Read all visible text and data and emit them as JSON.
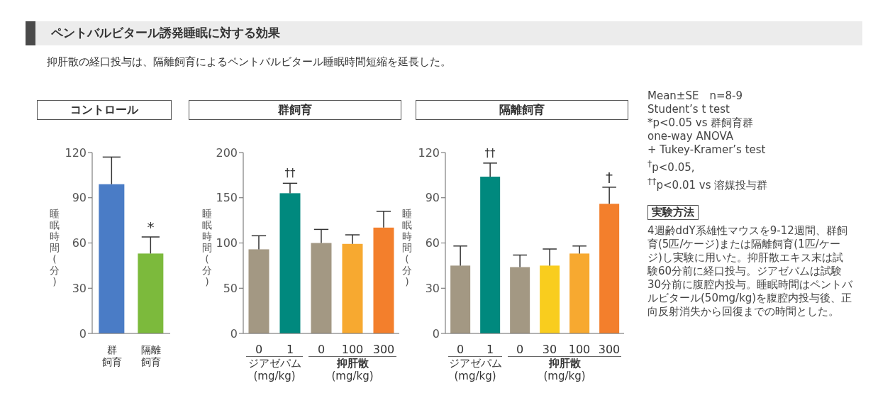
{
  "chart_data": [
    {
      "type": "other",
      "title": "ペントバルビタール誘発睡眠に対する効果",
      "subtitle": "抑肝散の経口投与は、隔離飼育によるペントバルビタール睡眠時間短縮を延長した。"
    },
    {
      "type": "bar",
      "title": "コントロール",
      "ylabel": "睡眠時間(分)",
      "categories": [
        "群飼育",
        "隔離飼育"
      ],
      "values": [
        99,
        53
      ],
      "colors": [
        "#4a7cc6",
        "#7cba3c"
      ],
      "errors": [
        [
          99,
          117
        ],
        [
          53,
          64
        ]
      ],
      "ylim": [
        0,
        120
      ],
      "yticks": [
        0,
        30,
        60,
        90,
        120
      ],
      "annotations": [
        {
          "text": "*",
          "x": "隔離飼育",
          "y": 64
        }
      ]
    },
    {
      "type": "bar",
      "title": "群飼育",
      "ylabel": "睡眠時間(分)",
      "categories": [
        "0",
        "1",
        "0",
        "100",
        "300"
      ],
      "values": [
        93,
        155,
        100,
        99,
        117
      ],
      "colors": [
        "#a39883",
        "#00897e",
        "#a39883",
        "#f7a930",
        "#f37f2c"
      ],
      "errors": [
        [
          93,
          108
        ],
        [
          155,
          166
        ],
        [
          100,
          115
        ],
        [
          99,
          109
        ],
        [
          117,
          135
        ]
      ],
      "ylim": [
        0,
        200
      ],
      "yticks": [
        0,
        50,
        100,
        150,
        200
      ],
      "annotations": [
        {
          "text": "††",
          "x": "1",
          "y": 166
        },
        "ジアゼパム\n(mg/kg)",
        "抑肝散\n(mg/kg)"
      ]
    },
    {
      "type": "bar",
      "title": "隔離飼育",
      "ylabel": "睡眠時間(分)",
      "categories": [
        "0",
        "1",
        "0",
        "30",
        "100",
        "300"
      ],
      "values": [
        45,
        104,
        44,
        45,
        53,
        86
      ],
      "colors": [
        "#a39883",
        "#00897e",
        "#a39883",
        "#f9cd1e",
        "#f7a930",
        "#f37f2c"
      ],
      "errors": [
        [
          45,
          58
        ],
        [
          104,
          113
        ],
        [
          44,
          52
        ],
        [
          45,
          56
        ],
        [
          53,
          58
        ],
        [
          86,
          97
        ]
      ],
      "ylim": [
        0,
        120
      ],
      "yticks": [
        0,
        30,
        60,
        90,
        120
      ],
      "annotations": [
        {
          "text": "††",
          "x": "1",
          "y": 113
        },
        {
          "text": "†",
          "x": "300",
          "y": 97
        },
        "ジアゼパム\n(mg/kg)",
        "抑肝散\n(mg/kg)"
      ]
    },
    {
      "type": "other",
      "title": "実験方法",
      "annotations": [
        "Mean±SE　n=8-9",
        "Student’s t test",
        "*p<0.05 vs 群飼育群",
        "one-way ANOVA",
        "+ Tukey-Kramer’s test",
        "$^{†}$p<0.05,",
        "$^{††}$p<0.01 vs 溶媒投与群",
        "4週齢ddY系雄性マウスを9-12週間、群飼育(5匹/ケージ)または隔離飼育(1匹/ケージ)し実験に用いた。抑肝散エキス末は試験60分前に経口投与。ジアゼパムは試験30分前に腹腔内投与。睡眠時間はペントバルビタール(50mg/kg)を腹腔内投与後、正向反射消失から回復までの時間とした。"
      ]
    }
  ]
}
